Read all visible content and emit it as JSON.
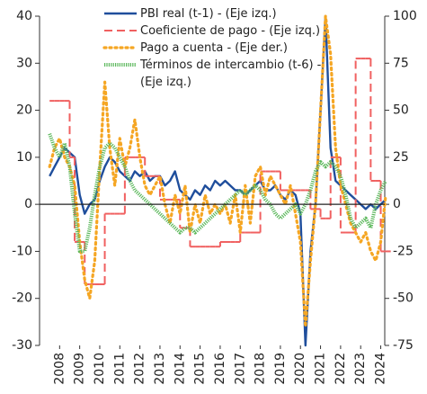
{
  "chart_data": {
    "type": "line",
    "x": [
      2007.5,
      2007.75,
      2008,
      2008.25,
      2008.5,
      2008.75,
      2009,
      2009.25,
      2009.5,
      2009.75,
      2010,
      2010.25,
      2010.5,
      2010.75,
      2011,
      2011.25,
      2011.5,
      2011.75,
      2012,
      2012.25,
      2012.5,
      2012.75,
      2013,
      2013.25,
      2013.5,
      2013.75,
      2014,
      2014.25,
      2014.5,
      2014.75,
      2015,
      2015.25,
      2015.5,
      2015.75,
      2016,
      2016.25,
      2016.5,
      2016.75,
      2017,
      2017.25,
      2017.5,
      2017.75,
      2018,
      2018.25,
      2018.5,
      2018.75,
      2019,
      2019.25,
      2019.5,
      2019.75,
      2020,
      2020.25,
      2020.5,
      2020.75,
      2021,
      2021.25,
      2021.5,
      2021.75,
      2022,
      2022.25,
      2022.5,
      2022.75,
      2023,
      2023.25,
      2023.5,
      2023.75,
      2024,
      2024.25
    ],
    "series": [
      {
        "name": "PBI real (t-1) - (Eje izq.)",
        "color": "#1f4e9c",
        "linestyle": "solid",
        "values": [
          6,
          8,
          10,
          12,
          11,
          10,
          2,
          -2,
          0,
          1,
          5,
          8,
          10,
          9,
          7,
          6,
          5,
          7,
          6,
          7,
          5,
          6,
          6,
          4,
          5,
          7,
          3,
          2,
          1,
          3,
          2,
          4,
          3,
          5,
          4,
          5,
          4,
          3,
          3,
          2,
          3,
          4,
          5,
          3,
          3,
          4,
          2,
          1,
          3,
          2,
          -2,
          -30,
          -10,
          0,
          20,
          40,
          12,
          5,
          4,
          3,
          2,
          1,
          0,
          -1,
          0,
          -1,
          0,
          1
        ]
      },
      {
        "name": "Coeficiente de pago - (Eje izq.)",
        "color": "#f06060",
        "linestyle": "dashed",
        "drawstyle": "steps-post",
        "values": [
          22,
          22,
          22,
          22,
          10,
          -8,
          -8,
          -17,
          -17,
          -17,
          -17,
          -2,
          -2,
          -2,
          -2,
          10,
          10,
          10,
          10,
          6,
          6,
          6,
          1,
          1,
          1,
          1,
          -5,
          -5,
          -9,
          -9,
          -9,
          -9,
          -9,
          -9,
          -8,
          -8,
          -8,
          -8,
          -6,
          -6,
          -6,
          -6,
          7,
          7,
          7,
          7,
          3,
          3,
          3,
          3,
          3,
          3,
          -1,
          -1,
          -3,
          -3,
          10,
          10,
          -6,
          -6,
          -6,
          31,
          31,
          31,
          5,
          5,
          -10,
          -10
        ]
      },
      {
        "name": "Pago a cuenta - (Eje der.)",
        "color": "#f5a623",
        "linestyle": "dotted",
        "axis": "y2",
        "values": [
          20,
          30,
          35,
          25,
          20,
          10,
          -20,
          -40,
          -50,
          -30,
          20,
          65,
          30,
          10,
          35,
          20,
          30,
          45,
          25,
          10,
          5,
          10,
          15,
          0,
          -10,
          5,
          -5,
          10,
          -15,
          0,
          -10,
          5,
          -5,
          0,
          -5,
          0,
          -10,
          5,
          -15,
          10,
          -10,
          15,
          20,
          5,
          15,
          10,
          5,
          0,
          10,
          -5,
          -20,
          -65,
          -30,
          0,
          50,
          100,
          80,
          30,
          10,
          0,
          -10,
          -15,
          -20,
          -15,
          -25,
          -30,
          -20,
          5
        ]
      },
      {
        "name": "Términos de intercambio (t-6) - (Eje izq.)",
        "color": "#5cb85c",
        "linestyle": "dense",
        "values": [
          15,
          12,
          10,
          13,
          8,
          -2,
          -10,
          -10,
          -5,
          2,
          8,
          12,
          13,
          12,
          10,
          8,
          5,
          3,
          2,
          1,
          0,
          -1,
          -2,
          -3,
          -4,
          -5,
          -6,
          -5,
          -5,
          -6,
          -5,
          -4,
          -3,
          -2,
          -1,
          0,
          1,
          2,
          3,
          2,
          3,
          4,
          3,
          1,
          0,
          -2,
          -3,
          -2,
          -1,
          0,
          -2,
          0,
          3,
          7,
          9,
          8,
          9,
          8,
          6,
          2,
          -3,
          -5,
          -4,
          -3,
          -5,
          0,
          3,
          5
        ]
      }
    ],
    "xlim": [
      2007,
      2024.2
    ],
    "xticks": [
      2008,
      2009,
      2010,
      2011,
      2012,
      2013,
      2014,
      2015,
      2016,
      2017,
      2018,
      2019,
      2020,
      2021,
      2022,
      2023,
      2024
    ],
    "ylim": [
      -30,
      40
    ],
    "yticks": [
      -30,
      -20,
      -10,
      0,
      10,
      20,
      30,
      40
    ],
    "y2lim": [
      -75,
      100
    ],
    "y2ticks": [
      -75,
      -50,
      -25,
      0,
      25,
      50,
      75,
      100
    ]
  }
}
